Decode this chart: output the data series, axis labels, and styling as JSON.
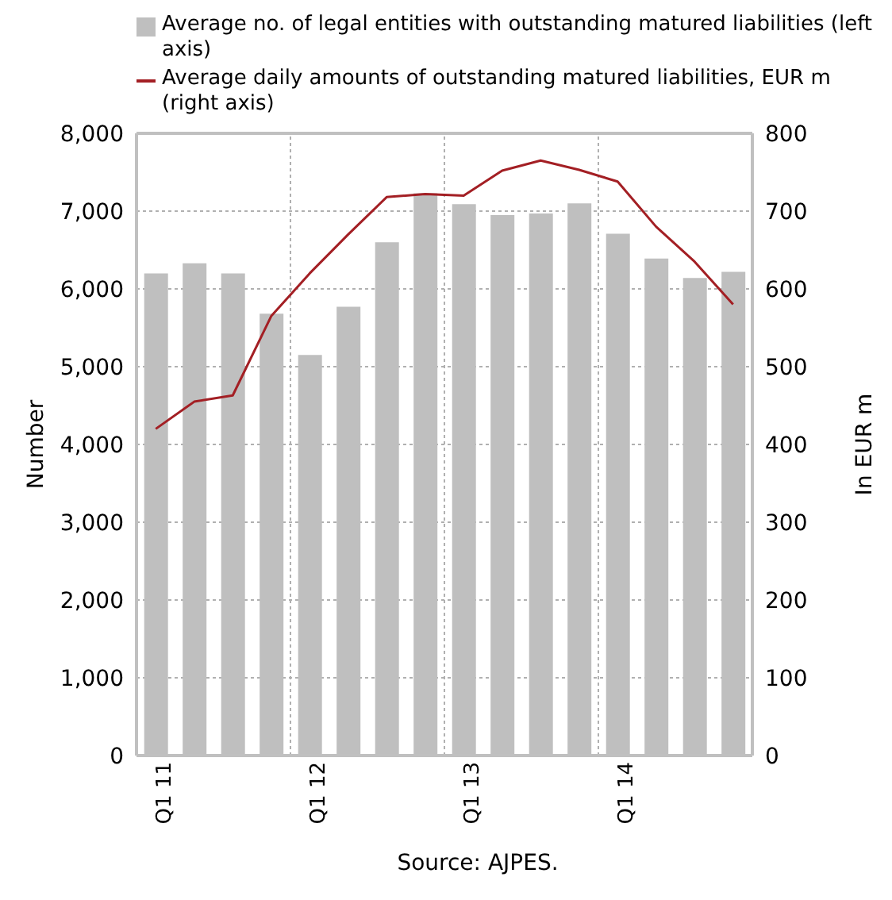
{
  "chart_data": {
    "type": "bar",
    "categories": [
      "Q1 11",
      null,
      null,
      null,
      "Q1 12",
      null,
      null,
      null,
      "Q1 13",
      null,
      null,
      null,
      "Q1 14",
      null,
      null,
      null
    ],
    "series": [
      {
        "name": "Average no. of legal entities with outstanding matured liabilities (left axis)",
        "color": "#bfbfbf",
        "values": [
          6200,
          6330,
          6200,
          5680,
          5150,
          5770,
          6600,
          7230,
          7090,
          6950,
          6970,
          7100,
          6710,
          6390,
          6140,
          6220
        ]
      },
      {
        "name": "Average daily amounts of outstanding matured liabilities, EUR m (right axis)",
        "color": "#a31f24",
        "type": "line",
        "axis": "y2",
        "values": [
          420,
          455,
          463,
          565,
          620,
          670,
          718,
          722,
          720,
          752,
          765,
          753,
          738,
          680,
          635,
          580
        ]
      }
    ],
    "ylabel": "Number",
    "y2label": "In  EUR m",
    "ylim": [
      0,
      8000
    ],
    "yticks": [
      0,
      {
        "value": 1000,
        "label": "1,000"
      },
      {
        "value": 2000,
        "label": "2,000"
      },
      {
        "value": 3000,
        "label": "3,000"
      },
      {
        "value": 4000,
        "label": "4,000"
      },
      {
        "value": 5000,
        "label": "5,000"
      },
      {
        "value": 6000,
        "label": "6,000"
      },
      {
        "value": 7000,
        "label": "7,000"
      },
      {
        "value": 8000,
        "label": "8,000"
      }
    ],
    "y2lim": [
      0,
      800
    ],
    "y2ticks": [
      0,
      100,
      200,
      300,
      400,
      500,
      600,
      700,
      800
    ],
    "grid": true,
    "legend": "top",
    "marker": "none",
    "line_style": "solid",
    "annotations": [
      "Source: AJPES."
    ]
  }
}
